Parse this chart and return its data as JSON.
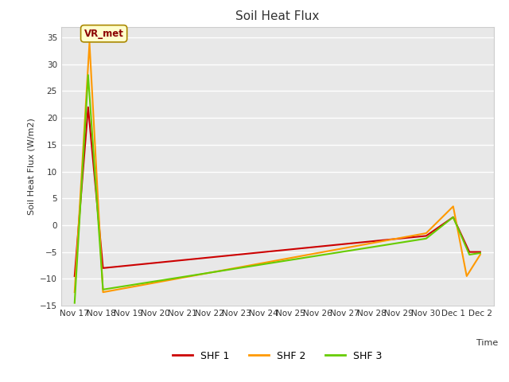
{
  "title": "Soil Heat Flux",
  "xlabel": "Time",
  "ylabel": "Soil Heat Flux (W/m2)",
  "ylim": [
    -15,
    37
  ],
  "yticks": [
    -15,
    -10,
    -5,
    0,
    5,
    10,
    15,
    20,
    25,
    30,
    35
  ],
  "background_color": "#e8e8e8",
  "annotation_text": "VR_met",
  "series": {
    "SHF1": {
      "color": "#cc0000",
      "label": "SHF 1",
      "x": [
        0,
        0.5,
        1.05,
        13.0,
        14.0,
        14.6,
        15.0
      ],
      "y": [
        -9.5,
        22.0,
        -8.0,
        -2.0,
        1.5,
        -5.0,
        -5.0
      ]
    },
    "SHF2": {
      "color": "#ff9900",
      "label": "SHF 2",
      "x": [
        0,
        0.55,
        1.05,
        13.0,
        14.0,
        14.5,
        15.0
      ],
      "y": [
        -12.5,
        34.0,
        -12.5,
        -1.5,
        3.5,
        -9.5,
        -5.5
      ]
    },
    "SHF3": {
      "color": "#66cc00",
      "label": "SHF 3",
      "x": [
        0,
        0.5,
        1.05,
        13.0,
        14.0,
        14.6,
        15.0
      ],
      "y": [
        -14.5,
        28.0,
        -12.0,
        -2.5,
        1.5,
        -5.5,
        -5.2
      ]
    }
  },
  "xtick_labels": [
    "Nov 17",
    "Nov 18",
    "Nov 19",
    "Nov 20",
    "Nov 21",
    "Nov 22",
    "Nov 23",
    "Nov 24",
    "Nov 25",
    "Nov 26",
    "Nov 27",
    "Nov 28",
    "Nov 29",
    "Nov 30",
    "Dec 1",
    "Dec 2"
  ],
  "xtick_positions": [
    0,
    1,
    2,
    3,
    4,
    5,
    6,
    7,
    8,
    9,
    10,
    11,
    12,
    13,
    14,
    15
  ],
  "legend_colors": [
    "#cc0000",
    "#ff9900",
    "#66cc00"
  ],
  "legend_labels": [
    "SHF 1",
    "SHF 2",
    "SHF 3"
  ]
}
